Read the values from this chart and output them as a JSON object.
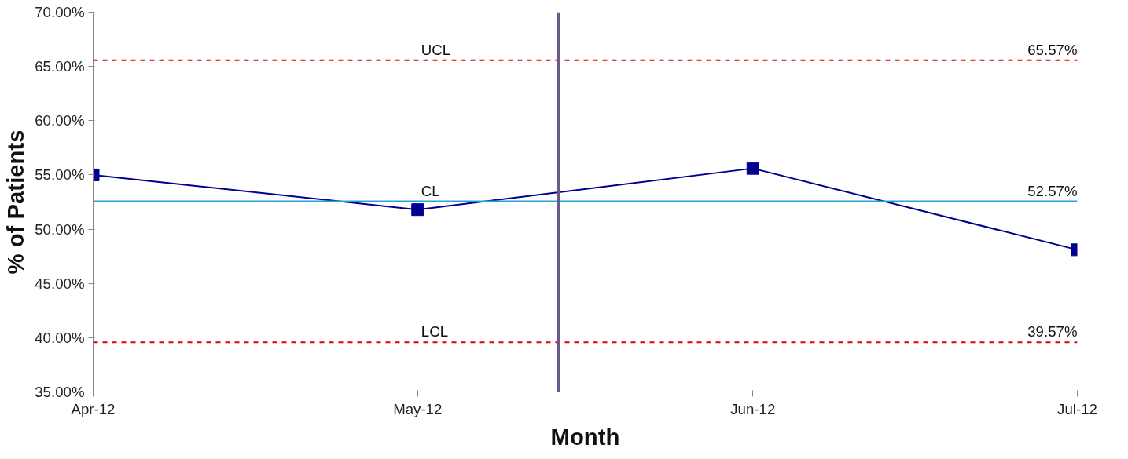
{
  "chart_data": {
    "type": "line",
    "xlabel": "Month",
    "ylabel": "% of Patients",
    "x": [
      "2012-04",
      "2012-05",
      "2012-06",
      "2012-07"
    ],
    "xlim": [
      "2012-04",
      "2012-07"
    ],
    "xticks": [
      {
        "value": "2012-04",
        "label": "Apr-12"
      },
      {
        "value": "2012-05",
        "label": "May-12"
      },
      {
        "value": "2012-06",
        "label": "Jun-12"
      },
      {
        "value": "2012-07",
        "label": "Jul-12"
      }
    ],
    "series": [
      {
        "color": "#000090",
        "values": [
          55.0,
          51.8,
          55.6,
          48.1
        ]
      }
    ],
    "marker": "square",
    "line_style": "solid",
    "grid": false,
    "ylim": [
      35,
      70
    ],
    "yticks": [
      {
        "value": 35,
        "label": "35.00%"
      },
      {
        "value": 40,
        "label": "40.00%"
      },
      {
        "value": 45,
        "label": "45.00%"
      },
      {
        "value": 50,
        "label": "50.00%"
      },
      {
        "value": 55,
        "label": "55.00%"
      },
      {
        "value": 60,
        "label": "60.00%"
      },
      {
        "value": 65,
        "label": "65.00%"
      },
      {
        "value": 70,
        "label": "70.00%"
      }
    ],
    "ref_lines": [
      {
        "axis": "y",
        "value": 65.57,
        "label": "UCL",
        "color": "#e00000",
        "line_style": "dashed"
      },
      {
        "axis": "y",
        "value": 52.57,
        "label": "CL",
        "color": "#2aa0d8",
        "line_style": "solid"
      },
      {
        "axis": "y",
        "value": 39.57,
        "label": "LCL",
        "color": "#e00000",
        "line_style": "dashed"
      },
      {
        "axis": "x",
        "value": "2012-05-14",
        "color": "#6a5a8c",
        "line_style": "solid"
      }
    ],
    "annotations": [
      {
        "text": "65.57%",
        "x": "2012-07",
        "y": 65.57
      },
      {
        "text": "52.57%",
        "x": "2012-07",
        "y": 52.57
      },
      {
        "text": "39.57%",
        "x": "2012-07",
        "y": 39.57
      }
    ]
  }
}
